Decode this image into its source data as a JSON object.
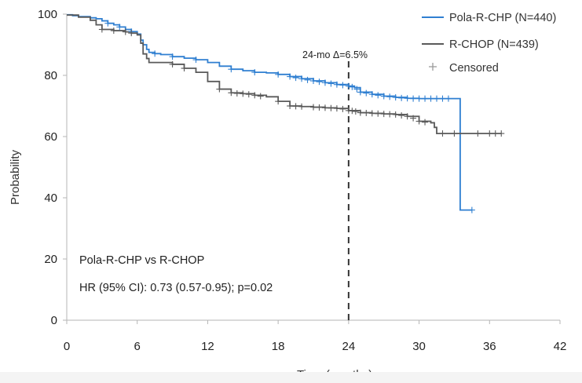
{
  "chart_data": {
    "type": "line",
    "subtype": "kaplan-meier",
    "xlabel": "Time (months)",
    "ylabel": "Probability",
    "xlim": [
      0,
      42
    ],
    "ylim": [
      0,
      100
    ],
    "xticks": [
      0,
      6,
      12,
      18,
      24,
      30,
      36,
      42
    ],
    "yticks": [
      0,
      20,
      40,
      60,
      80,
      100
    ],
    "grid": false,
    "legend": {
      "position": "top-right",
      "entries": [
        {
          "label": "Pola-R-CHP (N=440)",
          "color": "#2f7fd1",
          "marker": "line"
        },
        {
          "label": "R-CHOP (N=439)",
          "color": "#5a5a5a",
          "marker": "line"
        },
        {
          "label": "Censored",
          "color": "#9a9a9a",
          "marker": "plus"
        }
      ]
    },
    "series": [
      {
        "name": "Pola-R-CHP (N=440)",
        "color": "#2f7fd1",
        "x": [
          0,
          0.5,
          1,
          2,
          2.5,
          3,
          3.5,
          4,
          4.5,
          5,
          5.5,
          6,
          6.3,
          6.5,
          6.8,
          7,
          7.5,
          8,
          9,
          10,
          11,
          12,
          13,
          14,
          15,
          16,
          17,
          18,
          19,
          20,
          21,
          22,
          23,
          24,
          24.5,
          25,
          26,
          27,
          28,
          29,
          30,
          31,
          32,
          33,
          33.5,
          33.5,
          34.5
        ],
        "y": [
          99.8,
          99.5,
          99.2,
          98.8,
          98.5,
          97.8,
          97,
          96.5,
          95.8,
          95,
          94.3,
          93.5,
          91.5,
          90,
          88.5,
          87.5,
          87.1,
          86.8,
          86.1,
          85.6,
          85.1,
          84.2,
          83,
          82,
          81.5,
          81,
          80.8,
          80.3,
          79.6,
          78.9,
          78.2,
          77.6,
          77,
          76.5,
          76,
          74.5,
          73.8,
          73.2,
          72.8,
          72.5,
          72.4,
          72.4,
          72.4,
          72.4,
          72.4,
          36,
          36
        ],
        "censored": [
          3.5,
          4.5,
          5.5,
          7.5,
          9,
          11,
          14,
          16,
          18,
          19,
          19.5,
          20,
          20.5,
          21,
          21.5,
          22,
          22.5,
          23,
          23.5,
          24,
          24.3,
          24.7,
          25,
          25.5,
          26,
          26.5,
          27,
          27.5,
          28,
          28.5,
          29,
          29.5,
          30,
          30.5,
          31,
          31.5,
          32,
          32.5,
          34.5
        ],
        "censored_y": [
          97,
          95.8,
          94.3,
          87.1,
          86.1,
          85.1,
          82,
          81,
          80.3,
          79.6,
          79.2,
          78.9,
          78.5,
          78.2,
          77.9,
          77.6,
          77.3,
          77,
          76.8,
          76.5,
          76.2,
          75.5,
          74.5,
          74.2,
          73.8,
          73.5,
          73.2,
          73,
          72.8,
          72.6,
          72.5,
          72.4,
          72.4,
          72.4,
          72.4,
          72.4,
          72.4,
          72.4,
          36
        ]
      },
      {
        "name": "R-CHOP (N=439)",
        "color": "#5a5a5a",
        "x": [
          0,
          1,
          2,
          2.5,
          3,
          4,
          5,
          5.5,
          6,
          6.3,
          6.5,
          6.8,
          7,
          8,
          9,
          10,
          11,
          12,
          13,
          14,
          15,
          16,
          17,
          18,
          19,
          20,
          21,
          22,
          23,
          24,
          25,
          26,
          27,
          28,
          29,
          30,
          31,
          31.3,
          31.5,
          37
        ],
        "y": [
          99.7,
          99,
          98,
          96.5,
          95,
          94.6,
          94.2,
          93.8,
          93.2,
          90.5,
          87,
          85.5,
          84.2,
          84.2,
          83.6,
          82.3,
          81,
          78,
          75.5,
          74.3,
          74,
          73.5,
          73,
          71.5,
          70,
          69.8,
          69.6,
          69.4,
          69.2,
          68.5,
          67.8,
          67.6,
          67.4,
          67.2,
          66.6,
          65,
          64.5,
          63,
          61,
          61
        ],
        "censored": [
          3,
          4,
          5,
          5.5,
          9,
          10,
          13,
          14,
          14.5,
          15,
          15.5,
          16,
          16.5,
          18,
          19,
          19.5,
          20,
          21,
          21.5,
          22,
          22.5,
          23,
          23.5,
          24,
          24.3,
          24.6,
          25,
          25.5,
          26,
          26.5,
          27,
          27.5,
          28,
          28.5,
          29,
          29.5,
          30,
          30.5,
          32,
          33,
          35,
          36,
          36.5,
          37
        ],
        "censored_y": [
          95,
          94.6,
          94.2,
          93.8,
          83.6,
          82.3,
          75.5,
          74.3,
          74.1,
          74,
          73.8,
          73.5,
          73.2,
          71.5,
          70,
          69.9,
          69.8,
          69.6,
          69.5,
          69.4,
          69.3,
          69.2,
          69,
          68.5,
          68.4,
          68.2,
          67.8,
          67.7,
          67.6,
          67.5,
          67.4,
          67.3,
          67.2,
          66.9,
          66.6,
          66,
          65,
          64.7,
          61,
          61,
          61,
          61,
          61,
          61
        ]
      }
    ],
    "reference_line": {
      "x": 24,
      "label": "24-mo Δ=6.5%"
    },
    "annotations": [
      "Pola-R-CHP vs R-CHOP",
      "HR (95% CI): 0.73 (0.57-0.95); p=0.02"
    ]
  }
}
